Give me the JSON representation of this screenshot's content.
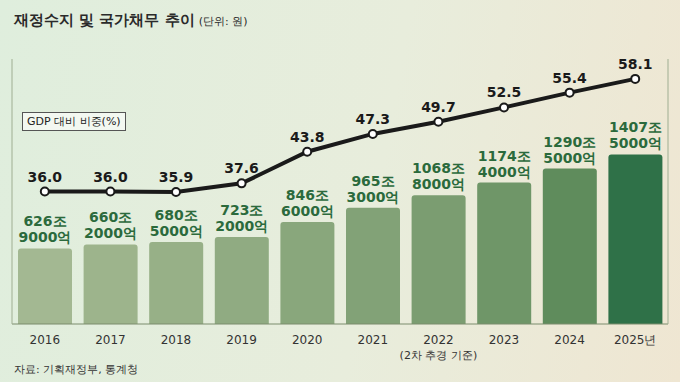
{
  "chart_data": {
    "type": "bar",
    "title": "재정수지 및 국가채무 추이",
    "subtitle": "(단위: 원)",
    "source": "자료: 기획재정부, 통계청",
    "categories": [
      "2016",
      "2017",
      "2018",
      "2019",
      "2020",
      "2021",
      "2022",
      "2023",
      "2024",
      "2025년"
    ],
    "values": [
      626.9,
      660.2,
      680.5,
      723.2,
      846.6,
      965.3,
      1068.8,
      1174.4,
      1290.5,
      1407.5
    ],
    "value_labels": [
      "626조 9000억",
      "660조 2000억",
      "680조 5000억",
      "723조 2000억",
      "846조 6000억",
      "965조 3000억",
      "1068조 8000억",
      "1174조 4000억",
      "1290조 5000억",
      "1407조 5000억"
    ],
    "colors": [
      "#a3b892",
      "#9db48c",
      "#97b087",
      "#90ab82",
      "#89a77c",
      "#82a277",
      "#7b9d71",
      "#6f9668",
      "#5f8c5c",
      "#2f7148"
    ],
    "data_labels": true,
    "ylim": [
      0,
      2200
    ],
    "yticks": [],
    "y2lim": [
      10,
      62
    ],
    "y2ticks": [],
    "tick_labels": "x",
    "grid": false,
    "legend": "top-left",
    "annotations": [
      {
        "category": "2022",
        "text": "(2차 추경 기준)"
      }
    ],
    "series": [
      {
        "name": "GDP 대비 비중(%)",
        "type": "line",
        "axis": "y2",
        "color": "#1a1a1a",
        "marker": "circle",
        "values": [
          36.0,
          36.0,
          35.9,
          37.6,
          43.8,
          47.3,
          49.7,
          52.5,
          55.4,
          58.1
        ],
        "value_labels": [
          "36.0",
          "36.0",
          "35.9",
          "37.6",
          "43.8",
          "47.3",
          "49.7",
          "52.5",
          "55.4",
          "58.1"
        ]
      }
    ]
  }
}
